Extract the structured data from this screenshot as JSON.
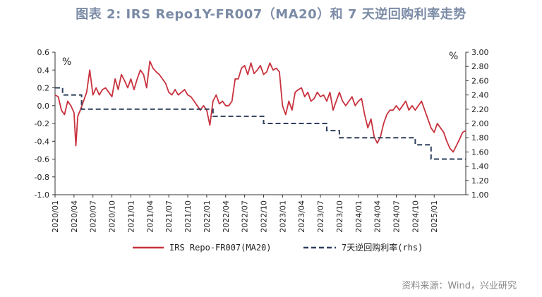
{
  "title": "图表 2:  IRS Repo1Y-FR007（MA20）和 7 天逆回购利率走势",
  "source": "资料来源：Wind，兴业研究",
  "colors": {
    "title": "#7b8ba6",
    "series1": "#c8323e",
    "series2": "#2e3f5c"
  },
  "chart_data": {
    "type": "line",
    "left_axis": {
      "unit_label": "%",
      "ylim": [
        -1.0,
        0.6
      ],
      "ticks": [
        "0.6",
        "0.4",
        "0.2",
        "0.0",
        "-0.2",
        "-0.4",
        "-0.6",
        "-0.8",
        "-1.0"
      ]
    },
    "right_axis": {
      "unit_label": "%",
      "ylim": [
        1.0,
        3.0
      ],
      "ticks": [
        "3.00",
        "2.80",
        "2.60",
        "2.40",
        "2.20",
        "2.00",
        "1.80",
        "1.60",
        "1.40",
        "1.20",
        "1.00"
      ]
    },
    "x_ticks": [
      "2020/01",
      "2020/04",
      "2020/07",
      "2020/10",
      "2021/01",
      "2021/04",
      "2021/07",
      "2021/10",
      "2022/01",
      "2022/04",
      "2022/07",
      "2022/10",
      "2023/01",
      "2023/04",
      "2023/07",
      "2023/10",
      "2024/01",
      "2024/04",
      "2024/07",
      "2024/10",
      "2025/01"
    ],
    "legend_position": "bottom",
    "series": [
      {
        "name": "IRS Repo-FR007(MA20)",
        "axis": "left",
        "style": "solid",
        "points": [
          [
            0,
            0.12
          ],
          [
            0.5,
            0.1
          ],
          [
            1,
            -0.05
          ],
          [
            1.5,
            -0.1
          ],
          [
            2,
            0.05
          ],
          [
            2.5,
            0.0
          ],
          [
            3,
            -0.08
          ],
          [
            3.3,
            -0.45
          ],
          [
            3.6,
            -0.12
          ],
          [
            4,
            -0.05
          ],
          [
            4.5,
            0.05
          ],
          [
            5,
            0.15
          ],
          [
            5.5,
            0.4
          ],
          [
            6,
            0.12
          ],
          [
            6.5,
            0.2
          ],
          [
            7,
            0.12
          ],
          [
            7.5,
            0.18
          ],
          [
            8,
            0.2
          ],
          [
            8.5,
            0.15
          ],
          [
            9,
            0.1
          ],
          [
            9.5,
            0.3
          ],
          [
            10,
            0.18
          ],
          [
            10.5,
            0.35
          ],
          [
            11,
            0.28
          ],
          [
            11.5,
            0.2
          ],
          [
            12,
            0.3
          ],
          [
            12.5,
            0.18
          ],
          [
            13,
            0.3
          ],
          [
            13.5,
            0.4
          ],
          [
            14,
            0.35
          ],
          [
            14.5,
            0.2
          ],
          [
            15,
            0.5
          ],
          [
            15.5,
            0.42
          ],
          [
            16,
            0.38
          ],
          [
            16.5,
            0.35
          ],
          [
            17,
            0.3
          ],
          [
            17.5,
            0.25
          ],
          [
            18,
            0.15
          ],
          [
            18.5,
            0.12
          ],
          [
            19,
            0.18
          ],
          [
            19.5,
            0.12
          ],
          [
            20,
            0.15
          ],
          [
            20.5,
            0.18
          ],
          [
            21,
            0.12
          ],
          [
            21.5,
            0.1
          ],
          [
            22,
            0.05
          ],
          [
            22.5,
            0.0
          ],
          [
            23,
            -0.05
          ],
          [
            23.5,
            0.0
          ],
          [
            24,
            -0.05
          ],
          [
            24.5,
            -0.22
          ],
          [
            25,
            0.05
          ],
          [
            25.5,
            0.12
          ],
          [
            26,
            0.02
          ],
          [
            26.5,
            0.05
          ],
          [
            27,
            0.0
          ],
          [
            27.5,
            0.0
          ],
          [
            28,
            0.05
          ],
          [
            28.5,
            0.3
          ],
          [
            29,
            0.3
          ],
          [
            29.5,
            0.42
          ],
          [
            30,
            0.45
          ],
          [
            30.5,
            0.35
          ],
          [
            31,
            0.48
          ],
          [
            31.5,
            0.36
          ],
          [
            32,
            0.4
          ],
          [
            32.5,
            0.45
          ],
          [
            33,
            0.35
          ],
          [
            33.5,
            0.38
          ],
          [
            34,
            0.48
          ],
          [
            34.5,
            0.4
          ],
          [
            35,
            0.42
          ],
          [
            35.5,
            0.38
          ],
          [
            36,
            0.0
          ],
          [
            36.5,
            -0.1
          ],
          [
            37,
            0.05
          ],
          [
            37.5,
            -0.05
          ],
          [
            38,
            0.15
          ],
          [
            38.5,
            0.18
          ],
          [
            39,
            0.2
          ],
          [
            39.5,
            0.1
          ],
          [
            40,
            0.15
          ],
          [
            40.5,
            0.05
          ],
          [
            41,
            0.08
          ],
          [
            41.5,
            0.15
          ],
          [
            42,
            0.1
          ],
          [
            42.5,
            0.12
          ],
          [
            43,
            0.05
          ],
          [
            43.5,
            0.15
          ],
          [
            44,
            -0.05
          ],
          [
            44.5,
            0.05
          ],
          [
            45,
            0.15
          ],
          [
            45.5,
            0.05
          ],
          [
            46,
            0.0
          ],
          [
            46.5,
            0.05
          ],
          [
            47,
            0.1
          ],
          [
            47.5,
            0.0
          ],
          [
            48,
            0.05
          ],
          [
            48.5,
            0.08
          ],
          [
            49,
            -0.1
          ],
          [
            49.5,
            -0.25
          ],
          [
            50,
            -0.15
          ],
          [
            50.5,
            -0.35
          ],
          [
            51,
            -0.42
          ],
          [
            51.5,
            -0.35
          ],
          [
            52,
            -0.2
          ],
          [
            52.5,
            -0.1
          ],
          [
            53,
            -0.05
          ],
          [
            53.5,
            -0.05
          ],
          [
            54,
            0.0
          ],
          [
            54.5,
            -0.05
          ],
          [
            55,
            0.0
          ],
          [
            55.5,
            0.05
          ],
          [
            56,
            -0.05
          ],
          [
            56.5,
            0.0
          ],
          [
            57,
            -0.05
          ],
          [
            57.5,
            0.0
          ],
          [
            58,
            0.05
          ],
          [
            58.5,
            -0.05
          ],
          [
            59,
            -0.15
          ],
          [
            59.5,
            -0.25
          ],
          [
            60,
            -0.3
          ],
          [
            60.5,
            -0.2
          ],
          [
            61,
            -0.25
          ],
          [
            61.5,
            -0.3
          ],
          [
            62,
            -0.4
          ],
          [
            62.5,
            -0.48
          ],
          [
            63,
            -0.52
          ],
          [
            63.5,
            -0.45
          ],
          [
            64,
            -0.38
          ],
          [
            64.5,
            -0.3
          ],
          [
            65,
            -0.28
          ]
        ]
      },
      {
        "name": "7天逆回购利率(rhs)",
        "axis": "right",
        "style": "dashed",
        "steps": [
          [
            0,
            2.5
          ],
          [
            1.2,
            2.4
          ],
          [
            4.2,
            2.2
          ],
          [
            25,
            2.1
          ],
          [
            33,
            2.0
          ],
          [
            43,
            1.9
          ],
          [
            45,
            1.8
          ],
          [
            57,
            1.7
          ],
          [
            59.5,
            1.5
          ],
          [
            65,
            1.5
          ]
        ]
      }
    ]
  }
}
